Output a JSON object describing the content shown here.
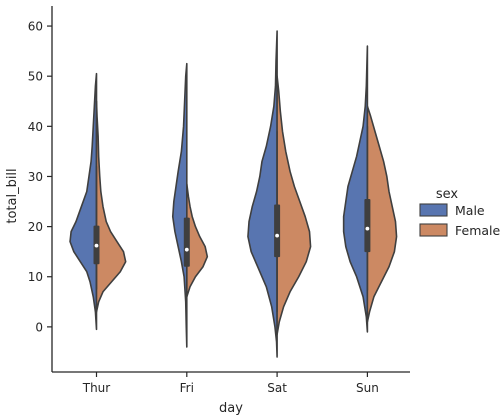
{
  "chart_data": {
    "type": "violin",
    "split": true,
    "xlabel": "day",
    "ylabel": "total_bill",
    "categories": [
      "Thur",
      "Fri",
      "Sat",
      "Sun"
    ],
    "ylim": [
      -9,
      64
    ],
    "yticks": [
      0,
      10,
      20,
      30,
      40,
      50,
      60
    ],
    "legend": {
      "title": "sex",
      "placement": "right"
    },
    "series": [
      {
        "name": "Male",
        "color": "#5875b0",
        "extent": [
          [
            -0.5,
            50.5
          ],
          [
            -4.0,
            52.5
          ],
          [
            -6.0,
            59.0
          ],
          [
            -1.0,
            56.0
          ]
        ],
        "profiles": [
          [
            [
              -0.5,
              0
            ],
            [
              3,
              0.01
            ],
            [
              6,
              0.03
            ],
            [
              9,
              0.06
            ],
            [
              11,
              0.09
            ],
            [
              13,
              0.15
            ],
            [
              15,
              0.21
            ],
            [
              17,
              0.245
            ],
            [
              19,
              0.235
            ],
            [
              21,
              0.19
            ],
            [
              24,
              0.14
            ],
            [
              27,
              0.09
            ],
            [
              30,
              0.07
            ],
            [
              33,
              0.05
            ],
            [
              36,
              0.04
            ],
            [
              40,
              0.03
            ],
            [
              44,
              0.02
            ],
            [
              48,
              0.01
            ],
            [
              50.5,
              0
            ]
          ],
          [
            [
              -4,
              0
            ],
            [
              0,
              0.005
            ],
            [
              5,
              0.01
            ],
            [
              10,
              0.025
            ],
            [
              13,
              0.05
            ],
            [
              16,
              0.08
            ],
            [
              19,
              0.11
            ],
            [
              22,
              0.13
            ],
            [
              25,
              0.12
            ],
            [
              28,
              0.1
            ],
            [
              31,
              0.08
            ],
            [
              35,
              0.05
            ],
            [
              40,
              0.03
            ],
            [
              45,
              0.02
            ],
            [
              50,
              0.01
            ],
            [
              52.5,
              0
            ]
          ],
          [
            [
              -6,
              0
            ],
            [
              -3,
              0.005
            ],
            [
              0,
              0.02
            ],
            [
              4,
              0.05
            ],
            [
              8,
              0.1
            ],
            [
              12,
              0.18
            ],
            [
              15,
              0.24
            ],
            [
              18,
              0.27
            ],
            [
              21,
              0.26
            ],
            [
              24,
              0.23
            ],
            [
              27,
              0.19
            ],
            [
              30,
              0.16
            ],
            [
              33,
              0.14
            ],
            [
              36,
              0.1
            ],
            [
              40,
              0.06
            ],
            [
              44,
              0.03
            ],
            [
              48,
              0.015
            ],
            [
              53,
              0.01
            ],
            [
              56,
              0.005
            ],
            [
              59,
              0
            ]
          ],
          [
            [
              -1,
              0
            ],
            [
              2,
              0.01
            ],
            [
              6,
              0.04
            ],
            [
              10,
              0.1
            ],
            [
              13,
              0.16
            ],
            [
              16,
              0.2
            ],
            [
              19,
              0.22
            ],
            [
              22,
              0.22
            ],
            [
              25,
              0.2
            ],
            [
              28,
              0.18
            ],
            [
              31,
              0.14
            ],
            [
              34,
              0.1
            ],
            [
              37,
              0.07
            ],
            [
              40,
              0.04
            ],
            [
              44,
              0.02
            ],
            [
              48,
              0.01
            ],
            [
              52,
              0.005
            ],
            [
              56,
              0
            ]
          ]
        ]
      },
      {
        "name": "Female",
        "color": "#cc8963",
        "extent": [
          [
            3.0,
            45.0
          ],
          [
            6.0,
            28.5
          ],
          [
            -1.5,
            50.0
          ],
          [
            1.0,
            44.0
          ]
        ],
        "profiles": [
          [
            [
              3,
              0
            ],
            [
              5,
              0.02
            ],
            [
              7,
              0.06
            ],
            [
              9,
              0.14
            ],
            [
              11,
              0.22
            ],
            [
              13,
              0.27
            ],
            [
              15,
              0.25
            ],
            [
              17,
              0.19
            ],
            [
              19,
              0.13
            ],
            [
              21,
              0.09
            ],
            [
              24,
              0.06
            ],
            [
              27,
              0.04
            ],
            [
              30,
              0.03
            ],
            [
              34,
              0.02
            ],
            [
              38,
              0.015
            ],
            [
              42,
              0.005
            ],
            [
              45,
              0
            ]
          ],
          [
            [
              6,
              0
            ],
            [
              8,
              0.03
            ],
            [
              10,
              0.08
            ],
            [
              12,
              0.15
            ],
            [
              14,
              0.19
            ],
            [
              16,
              0.17
            ],
            [
              18,
              0.12
            ],
            [
              20,
              0.08
            ],
            [
              22,
              0.05
            ],
            [
              24,
              0.03
            ],
            [
              26,
              0.015
            ],
            [
              28.5,
              0
            ]
          ],
          [
            [
              -1.5,
              0
            ],
            [
              1,
              0.02
            ],
            [
              4,
              0.06
            ],
            [
              7,
              0.12
            ],
            [
              10,
              0.2
            ],
            [
              13,
              0.27
            ],
            [
              16,
              0.31
            ],
            [
              19,
              0.3
            ],
            [
              22,
              0.26
            ],
            [
              25,
              0.21
            ],
            [
              28,
              0.16
            ],
            [
              31,
              0.12
            ],
            [
              35,
              0.08
            ],
            [
              39,
              0.05
            ],
            [
              43,
              0.03
            ],
            [
              47,
              0.015
            ],
            [
              50,
              0
            ]
          ],
          [
            [
              1,
              0
            ],
            [
              3,
              0.02
            ],
            [
              6,
              0.06
            ],
            [
              9,
              0.13
            ],
            [
              12,
              0.2
            ],
            [
              15,
              0.25
            ],
            [
              18,
              0.27
            ],
            [
              21,
              0.26
            ],
            [
              24,
              0.23
            ],
            [
              27,
              0.2
            ],
            [
              30,
              0.18
            ],
            [
              33,
              0.15
            ],
            [
              36,
              0.11
            ],
            [
              39,
              0.07
            ],
            [
              42,
              0.03
            ],
            [
              44,
              0
            ]
          ]
        ]
      }
    ],
    "box": [
      {
        "q1": 12.5,
        "median": 16.2,
        "q3": 20.2,
        "whisker": [
          7.5,
          32.0
        ]
      },
      {
        "q1": 12.0,
        "median": 15.4,
        "q3": 21.8,
        "whisker": [
          6.0,
          28.5
        ]
      },
      {
        "q1": 13.9,
        "median": 18.2,
        "q3": 24.4,
        "whisker": [
          3.0,
          39.0
        ]
      },
      {
        "q1": 14.9,
        "median": 19.6,
        "q3": 25.5,
        "whisker": [
          7.3,
          40.0
        ]
      }
    ]
  }
}
